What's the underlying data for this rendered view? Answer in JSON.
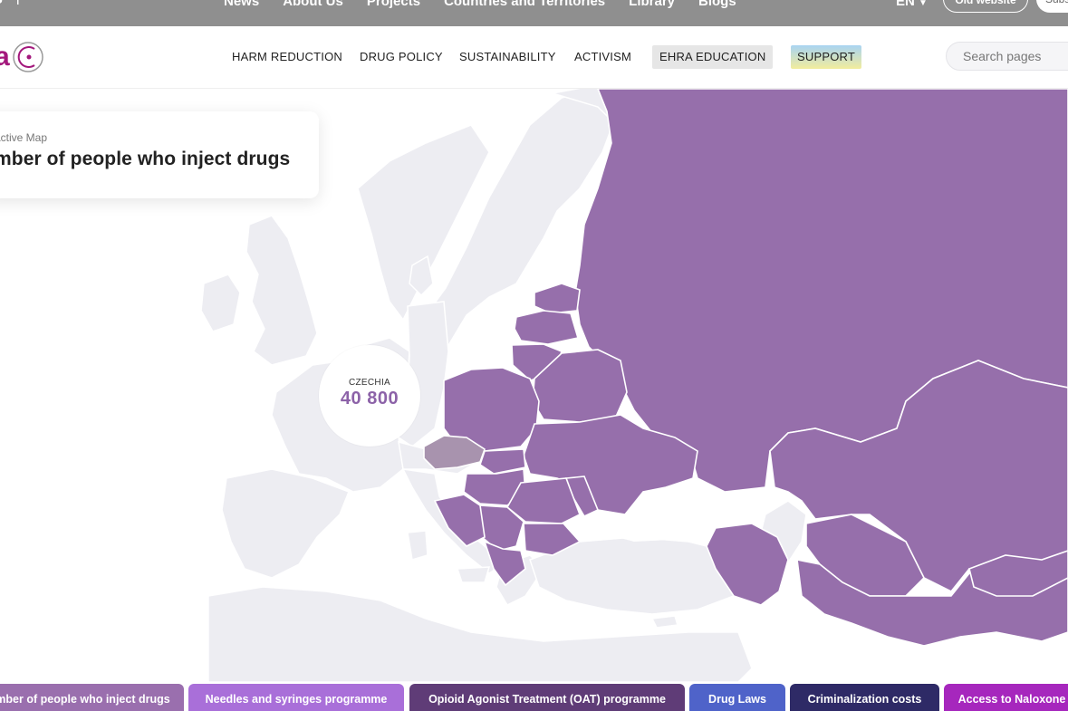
{
  "topbar": {
    "nav": [
      "News",
      "About Us",
      "Projects",
      "Countries and Territories",
      "Library",
      "Blogs"
    ],
    "lang": "EN",
    "old_website": "Old website",
    "subscribe": "Subscribe"
  },
  "header": {
    "logo_text": "a",
    "nav": {
      "harm_reduction": "HARM REDUCTION",
      "drug_policy": "DRUG POLICY",
      "sustainability": "SUSTAINABILITY",
      "activism": "ACTIVISM",
      "ehra_education": "EHRA EDUCATION",
      "support": "SUPPORT"
    },
    "search_placeholder": "Search pages"
  },
  "card": {
    "subtitle": "active Map",
    "title": "mber of people who inject drugs"
  },
  "map": {
    "highlighted_country": "CZECHIA",
    "highlighted_value": "40 800",
    "colors": {
      "ocean": "#ffffff",
      "land_inactive": "#ededf2",
      "land_active": "#966fab",
      "land_selected": "#a893ae"
    }
  },
  "tabs": [
    {
      "label": "mber of people who inject drugs",
      "color": "#9a6fae"
    },
    {
      "label": "Needles and syringes programme",
      "color": "#a96fd9"
    },
    {
      "label": "Opioid Agonist Treatment (OAT) programme",
      "color": "#5f3c77"
    },
    {
      "label": "Drug Laws",
      "color": "#4f63c9"
    },
    {
      "label": "Criminalization costs",
      "color": "#2e2a66"
    },
    {
      "label": "Access to Naloxone",
      "color": "#a627bd"
    }
  ]
}
